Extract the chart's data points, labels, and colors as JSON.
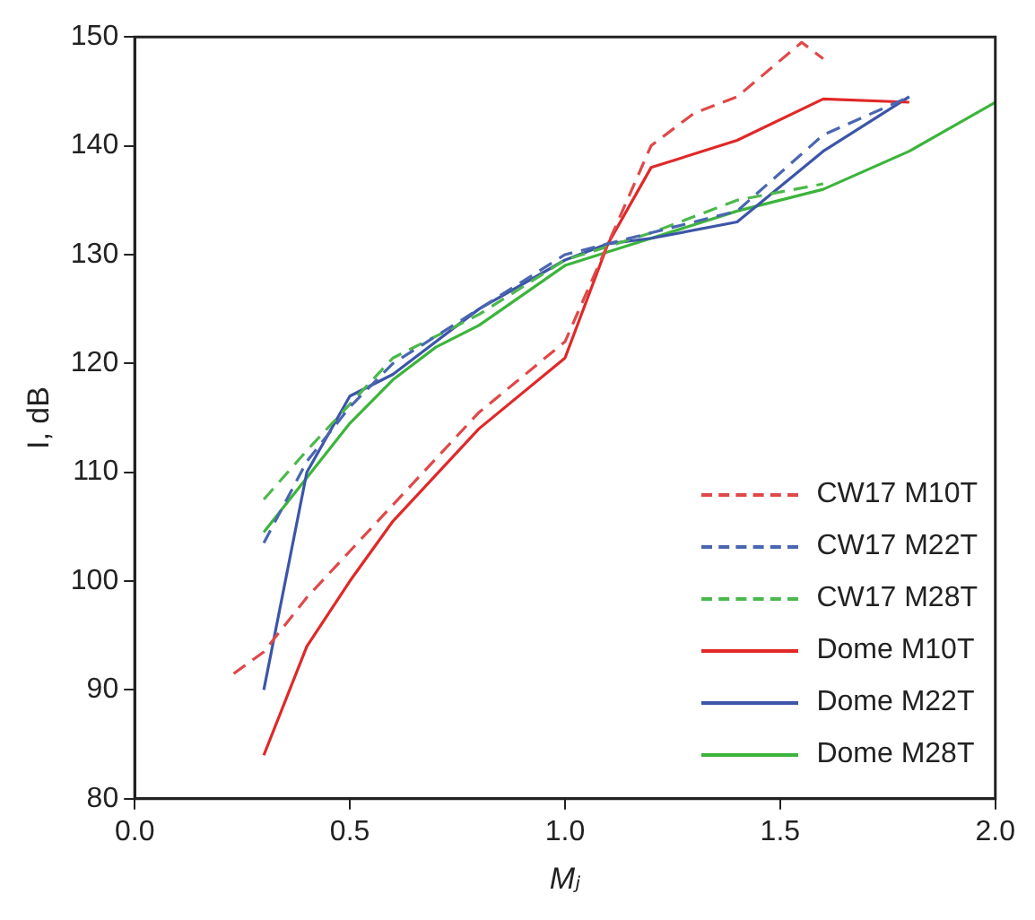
{
  "chart_data": {
    "type": "line",
    "xlabel": "Mⱼ",
    "ylabel": "I, dB",
    "xlim": [
      0,
      2
    ],
    "xticks": [
      {
        "value": 0,
        "label": "0.0"
      },
      {
        "value": 0.5,
        "label": "0.5"
      },
      {
        "value": 1,
        "label": "1.0"
      },
      {
        "value": 1.5,
        "label": "1.5"
      },
      {
        "value": 2,
        "label": "2.0"
      }
    ],
    "ylim": [
      80,
      150
    ],
    "yticks": [
      80,
      90,
      100,
      110,
      120,
      130,
      140,
      150
    ],
    "grid": false,
    "legend": "bottom right",
    "marker": "none",
    "series": [
      {
        "name": "CW17 M10T",
        "color": "#e04848",
        "line_style": "dashed",
        "x": [
          0.23,
          0.3,
          0.4,
          0.6,
          0.8,
          1.0,
          1.1,
          1.2,
          1.3,
          1.4,
          1.55,
          1.6
        ],
        "values": [
          91.5,
          93.5,
          98.5,
          107,
          115.5,
          122,
          131,
          140,
          143,
          144.5,
          149.5,
          148
        ]
      },
      {
        "name": "CW17 M22T",
        "color": "#4a66b0",
        "line_style": "dashed",
        "x": [
          0.3,
          0.4,
          0.5,
          0.6,
          0.8,
          1.0,
          1.1,
          1.4,
          1.6,
          1.8
        ],
        "values": [
          103.5,
          111,
          116,
          120,
          125,
          130,
          131,
          134,
          141,
          144.5
        ]
      },
      {
        "name": "CW17 M28T",
        "color": "#4cb84c",
        "line_style": "dashed",
        "x": [
          0.3,
          0.4,
          0.6,
          0.8,
          1.0,
          1.2,
          1.4,
          1.6
        ],
        "values": [
          107.5,
          112,
          120.5,
          124.5,
          129.5,
          132,
          135,
          136.5
        ]
      },
      {
        "name": "Dome M10T",
        "color": "#e02828",
        "line_style": "solid",
        "x": [
          0.3,
          0.4,
          0.5,
          0.6,
          0.8,
          1.0,
          1.1,
          1.2,
          1.4,
          1.6,
          1.8
        ],
        "values": [
          84,
          94,
          100,
          105.5,
          114,
          120.5,
          131,
          138,
          140.5,
          144.3,
          144
        ]
      },
      {
        "name": "Dome M22T",
        "color": "#3c55a8",
        "line_style": "solid",
        "x": [
          0.3,
          0.4,
          0.5,
          0.6,
          0.8,
          1.0,
          1.1,
          1.2,
          1.4,
          1.6,
          1.8
        ],
        "values": [
          90,
          110,
          117,
          119,
          125,
          129.5,
          131,
          131.5,
          133,
          139.5,
          144.5
        ]
      },
      {
        "name": "Dome M28T",
        "color": "#3cb43c",
        "line_style": "solid",
        "x": [
          0.3,
          0.4,
          0.5,
          0.6,
          0.7,
          0.8,
          1.0,
          1.2,
          1.4,
          1.6,
          1.8,
          2.0
        ],
        "values": [
          104.5,
          109.5,
          114.5,
          118.5,
          121.5,
          123.5,
          129,
          131.5,
          134,
          136,
          139.5,
          144
        ]
      }
    ]
  }
}
